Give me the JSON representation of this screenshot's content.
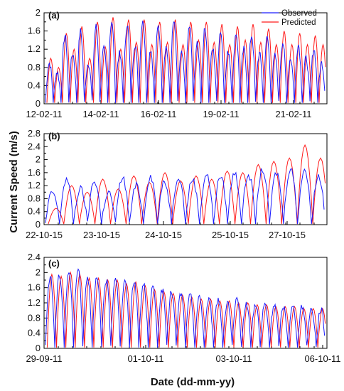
{
  "figure": {
    "ylabel": "Current Speed (m/s)",
    "xlabel": "Date (dd-mm-yy)"
  },
  "legend": {
    "observed_label": "Observed",
    "predicted_label": "Predicted",
    "observed_color": "#1a1aff",
    "predicted_color": "#ff1a1a",
    "placement": "top-right of panel (a)"
  },
  "chart_data": [
    {
      "type": "line",
      "panel_label": "(a)",
      "x_tick_labels": [
        "12-02-11",
        "14-02-11",
        "16-02-11",
        "19-02-11",
        "21-02-11"
      ],
      "ylim": [
        0,
        2
      ],
      "y_ticks": [
        0,
        0.4,
        0.8,
        1.2,
        1.6,
        2
      ],
      "y_tick_labels": [
        "0",
        "0.4",
        "0.8",
        "1.2",
        "1.6",
        "2"
      ],
      "series": [
        {
          "name": "Observed",
          "color": "#1a1aff",
          "cycles": 36,
          "peaks": [
            0.9,
            0.7,
            1.5,
            1.1,
            1.6,
            0.9,
            1.7,
            1.2,
            1.8,
            1.1,
            1.75,
            1.3,
            1.85,
            1.2,
            1.7,
            1.25,
            1.8,
            1.1,
            1.7,
            1.3,
            1.65,
            1.2,
            1.6,
            1.15,
            1.55,
            1.2,
            1.5,
            1.1,
            1.45,
            1.05,
            1.35,
            1.0,
            1.3,
            1.0,
            1.2,
            0.9
          ]
        },
        {
          "name": "Predicted",
          "color": "#ff1a1a",
          "cycles": 36,
          "peaks": [
            1.0,
            0.8,
            1.55,
            1.2,
            1.7,
            1.0,
            1.8,
            1.25,
            1.9,
            1.2,
            1.85,
            1.35,
            1.85,
            1.3,
            1.8,
            1.35,
            1.85,
            1.3,
            1.8,
            1.4,
            1.8,
            1.35,
            1.75,
            1.3,
            1.7,
            1.4,
            1.75,
            1.35,
            1.65,
            1.3,
            1.6,
            1.3,
            1.55,
            1.3,
            1.5,
            1.3
          ]
        }
      ]
    },
    {
      "type": "line",
      "panel_label": "(b)",
      "x_tick_labels": [
        "22-10-15",
        "23-10-15",
        "24-10-15",
        "25-10-15",
        "27-10-15"
      ],
      "ylim": [
        0,
        2.8
      ],
      "y_ticks": [
        0,
        0.4,
        0.8,
        1.2,
        1.6,
        2,
        2.4,
        2.8
      ],
      "y_tick_labels": [
        "0",
        "0.4",
        "0.8",
        "1.2",
        "1.6",
        "2",
        "2.4",
        "2.8"
      ],
      "series": [
        {
          "name": "Observed",
          "color": "#1a1aff",
          "cycles": 20,
          "peaks": [
            1.0,
            1.4,
            1.1,
            1.35,
            1.0,
            1.45,
            1.2,
            1.5,
            1.3,
            1.5,
            1.4,
            1.55,
            1.5,
            1.6,
            1.55,
            1.7,
            1.6,
            1.75,
            1.7,
            1.5
          ]
        },
        {
          "name": "Predicted",
          "color": "#ff1a1a",
          "cycles": 18,
          "peaks": [
            0.5,
            1.2,
            1.0,
            1.4,
            1.1,
            1.5,
            1.3,
            1.6,
            1.35,
            1.5,
            1.4,
            1.65,
            1.6,
            1.85,
            1.95,
            2.05,
            2.45,
            2.05
          ]
        }
      ]
    },
    {
      "type": "line",
      "panel_label": "(c)",
      "x_tick_labels": [
        "29-09-11",
        "01-10-11",
        "03-10-11",
        "06-10-11"
      ],
      "ylim": [
        0,
        2.4
      ],
      "y_ticks": [
        0,
        0.4,
        0.8,
        1.2,
        1.6,
        2,
        2.4
      ],
      "y_tick_labels": [
        "0",
        "0.4",
        "0.8",
        "1.2",
        "1.6",
        "2",
        "2.4"
      ],
      "series": [
        {
          "name": "Observed",
          "color": "#1a1aff",
          "cycles": 30,
          "peaks": [
            1.9,
            1.95,
            2.0,
            2.1,
            1.9,
            1.85,
            1.8,
            1.9,
            1.75,
            1.8,
            1.7,
            1.6,
            1.55,
            1.5,
            1.45,
            1.4,
            1.35,
            1.3,
            1.3,
            1.25,
            1.25,
            1.2,
            1.2,
            1.15,
            1.15,
            1.1,
            1.1,
            1.1,
            1.05,
            1.05
          ]
        },
        {
          "name": "Predicted",
          "color": "#ff1a1a",
          "cycles": 30,
          "peaks": [
            1.95,
            1.9,
            2.0,
            1.95,
            1.85,
            1.85,
            1.8,
            1.8,
            1.7,
            1.75,
            1.65,
            1.55,
            1.5,
            1.45,
            1.4,
            1.35,
            1.3,
            1.3,
            1.25,
            1.25,
            1.2,
            1.2,
            1.15,
            1.15,
            1.1,
            1.1,
            1.1,
            1.05,
            1.05,
            1.05
          ]
        }
      ]
    }
  ]
}
